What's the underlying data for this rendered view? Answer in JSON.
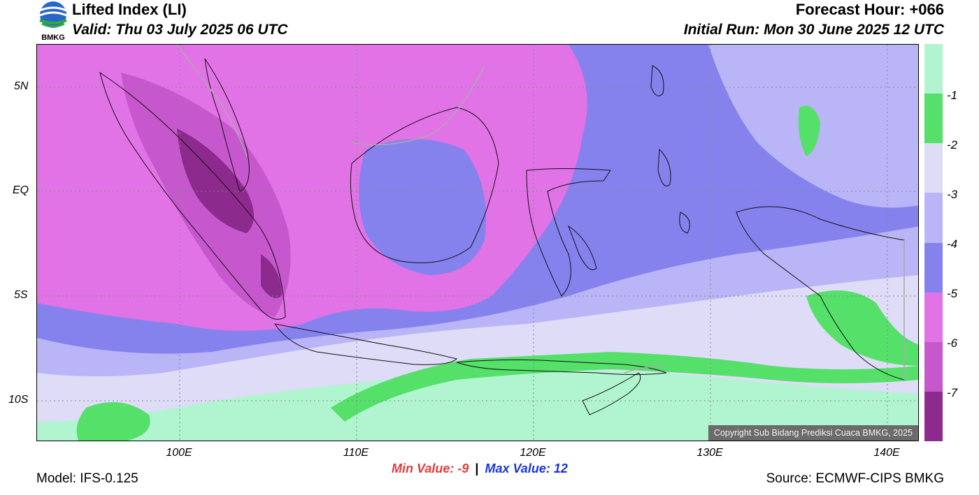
{
  "header": {
    "title": "Lifted Index (LI)",
    "valid": "Valid: Thu 03 July 2025 06 UTC",
    "forecast_hour": "Forecast Hour: +066",
    "initial_run": "Initial Run: Mon 30 June 2025 12 UTC",
    "logo_text": "BMKG"
  },
  "map": {
    "lat_labels": [
      "5N",
      "EQ",
      "5S",
      "10S"
    ],
    "lon_labels": [
      "100E",
      "110E",
      "120E",
      "130E",
      "140E"
    ],
    "copyright": "Copyright Sub Bidang Prediksi Cuaca BMKG, 2025"
  },
  "colorbar": {
    "labels": [
      "-1",
      "-2",
      "-3",
      "-4",
      "-5",
      "-6",
      "-7"
    ],
    "colors": [
      "#b0f5cf",
      "#55e06a",
      "#dedcf7",
      "#b9b5f7",
      "#8582ee",
      "#e173e6",
      "#c657cc",
      "#8d2a8e"
    ]
  },
  "stats": {
    "min_label": "Min Value:",
    "min_value": "-9",
    "separator": "|",
    "max_label": "Max Value:",
    "max_value": "12"
  },
  "footer": {
    "model": "Model: IFS-0.125",
    "source": "Source: ECMWF-CIPS BMKG"
  }
}
